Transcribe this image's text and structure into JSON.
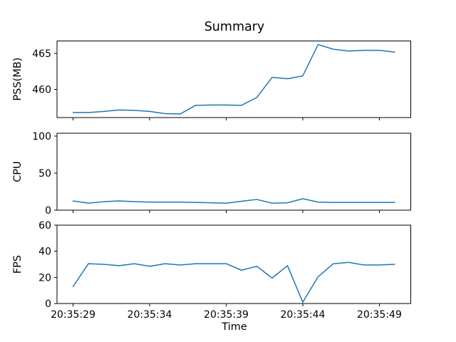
{
  "title": "Summary",
  "line_color": "#1f77b4",
  "spine_color": "#000000",
  "background_color": "#ffffff",
  "x_axis": {
    "label": "Time",
    "tick_labels": [
      "20:35:29",
      "20:35:34",
      "20:35:39",
      "20:35:44",
      "20:35:49"
    ],
    "ticks_sec": [
      0,
      5,
      10,
      15,
      20
    ]
  },
  "chart_data": [
    {
      "type": "line",
      "id": "pss",
      "ylabel": "PSS(MB)",
      "yticks": [
        460,
        465
      ],
      "ylim": [
        456.1,
        466.75
      ],
      "timestamps": [
        "20:35:29",
        "20:35:30",
        "20:35:31",
        "20:35:32",
        "20:35:33",
        "20:35:34",
        "20:35:35",
        "20:35:36",
        "20:35:37",
        "20:35:38",
        "20:35:39",
        "20:35:40",
        "20:35:41",
        "20:35:42",
        "20:35:43",
        "20:35:44",
        "20:35:45",
        "20:35:46",
        "20:35:47",
        "20:35:48",
        "20:35:49",
        "20:35:50"
      ],
      "x_seconds": [
        0,
        1,
        2,
        3,
        4,
        5,
        6,
        7,
        8,
        9,
        10,
        11,
        12,
        13,
        14,
        15,
        16,
        17,
        18,
        19,
        20,
        21
      ],
      "values": [
        456.8,
        456.8,
        456.95,
        457.15,
        457.1,
        456.95,
        456.65,
        456.6,
        457.8,
        457.85,
        457.85,
        457.8,
        458.9,
        461.7,
        461.5,
        461.9,
        466.25,
        465.6,
        465.35,
        465.45,
        465.45,
        465.2
      ]
    },
    {
      "type": "line",
      "id": "cpu",
      "ylabel": "CPU",
      "yticks": [
        0,
        50,
        100
      ],
      "ylim": [
        0,
        104
      ],
      "timestamps": [
        "20:35:29",
        "20:35:30",
        "20:35:31",
        "20:35:32",
        "20:35:33",
        "20:35:34",
        "20:35:35",
        "20:35:36",
        "20:35:37",
        "20:35:38",
        "20:35:39",
        "20:35:40",
        "20:35:41",
        "20:35:42",
        "20:35:43",
        "20:35:44",
        "20:35:45",
        "20:35:46",
        "20:35:47",
        "20:35:48",
        "20:35:49",
        "20:35:50"
      ],
      "x_seconds": [
        0,
        1,
        2,
        3,
        4,
        5,
        6,
        7,
        8,
        9,
        10,
        11,
        12,
        13,
        14,
        15,
        16,
        17,
        18,
        19,
        20,
        21
      ],
      "values": [
        12.5,
        9.5,
        11.5,
        12.5,
        11.5,
        11,
        11,
        11,
        10.5,
        10,
        9.5,
        12,
        14.5,
        9.5,
        10,
        15.5,
        11,
        10.5,
        10.5,
        10.5,
        10.5,
        10.5
      ]
    },
    {
      "type": "line",
      "id": "fps",
      "ylabel": "FPS",
      "yticks": [
        0,
        20,
        40,
        60
      ],
      "ylim": [
        0,
        60
      ],
      "timestamps": [
        "20:35:29",
        "20:35:30",
        "20:35:31",
        "20:35:32",
        "20:35:33",
        "20:35:34",
        "20:35:35",
        "20:35:36",
        "20:35:37",
        "20:35:38",
        "20:35:39",
        "20:35:40",
        "20:35:41",
        "20:35:42",
        "20:35:43",
        "20:35:44",
        "20:35:45",
        "20:35:46",
        "20:35:47",
        "20:35:48",
        "20:35:49",
        "20:35:50"
      ],
      "x_seconds": [
        0,
        1,
        2,
        3,
        4,
        5,
        6,
        7,
        8,
        9,
        10,
        11,
        12,
        13,
        14,
        15,
        16,
        17,
        18,
        19,
        20,
        21
      ],
      "values": [
        13,
        30.5,
        30,
        29,
        30.5,
        28.5,
        30.5,
        29.5,
        30.5,
        30.5,
        30.5,
        25.5,
        28.5,
        19.5,
        29,
        1,
        20.5,
        30.5,
        31.5,
        29.5,
        29.5,
        30
      ]
    }
  ]
}
